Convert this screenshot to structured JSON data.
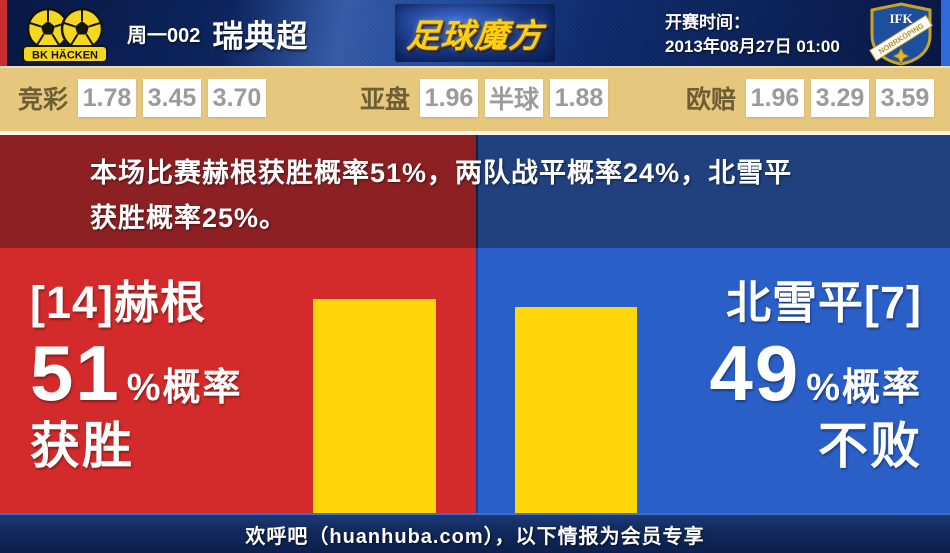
{
  "header": {
    "badge_home_text": "BK HÄCKEN",
    "match_code": "周一002",
    "league": "瑞典超",
    "site_logo": "足球魔方",
    "kickoff_label": "开赛时间：",
    "kickoff_datetime": "2013年08月27日 01:00",
    "badge_away_top": "IFK",
    "badge_away_band": "NORRKÖPING"
  },
  "odds": {
    "groups": [
      {
        "label": "竞彩",
        "values": [
          "1.78",
          "3.45",
          "3.70"
        ]
      },
      {
        "label": "亚盘",
        "values": [
          "1.96",
          "半球",
          "1.88"
        ]
      },
      {
        "label": "欧赔",
        "values": [
          "1.96",
          "3.29",
          "3.59"
        ]
      }
    ]
  },
  "summary": {
    "line1": "本场比赛赫根获胜概率51%，两队战平概率24%，北雪平",
    "line2": "获胜概率25%。"
  },
  "prediction": {
    "home": {
      "team": "[14]赫根",
      "probability": "51",
      "probability_value": 51,
      "suffix": "%概率",
      "outcome": "获胜"
    },
    "away": {
      "team": "北雪平[7]",
      "probability": "49",
      "probability_value": 49,
      "suffix": "%概率",
      "outcome": "不败"
    }
  },
  "footer": {
    "text": "欢呼吧（huanhuba.com），以下情报为会员专享"
  },
  "colors": {
    "header_navy": "#0f2a6b",
    "odds_bg": "#e5c77e",
    "home_dark": "#8c2023",
    "away_dark": "#20407e",
    "home_bright": "#d32b2b",
    "away_bright": "#2a5fc8",
    "bar_yellow": "#ffd60a",
    "footer_navy": "#122a5e"
  }
}
